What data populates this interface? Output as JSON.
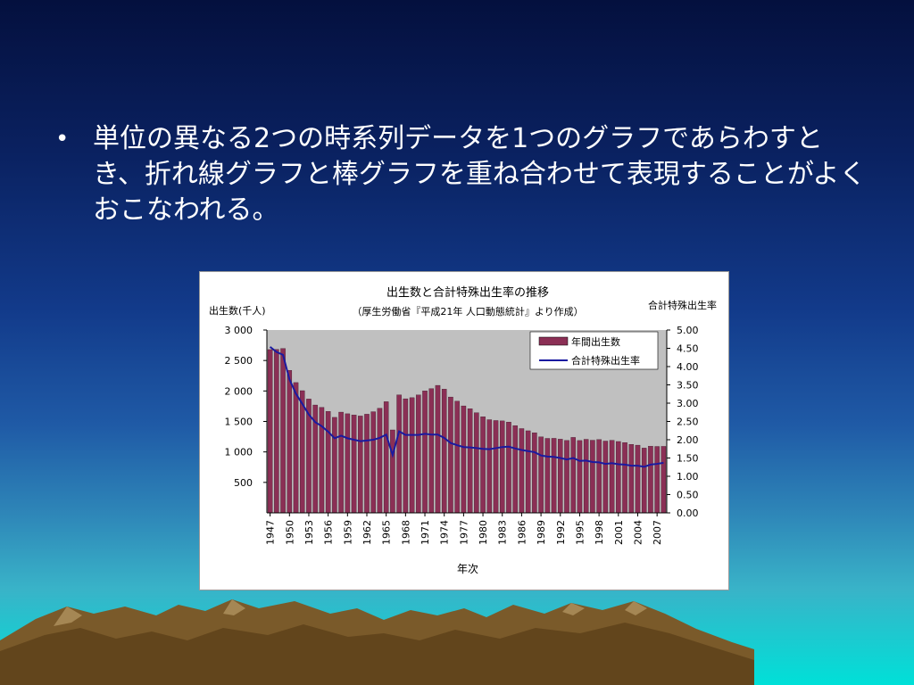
{
  "slide": {
    "bullet_symbol": "•",
    "text": "単位の異なる2つの時系列データを1つのグラフであらわすとき、折れ線グラフと棒グラフを重ね合わせて表現することがよくおこなわれる。"
  },
  "colors": {
    "bar": "#8b2f55",
    "line": "#1a1aa0",
    "plot_bg": "#c0c0c0"
  },
  "chart_data": {
    "type": "bar",
    "title": "出生数と合計特殊出生率の推移",
    "subtitle": "（厚生労働省『平成21年 人口動態統計』より作成）",
    "xlabel": "年次",
    "ylabel_left": "出生数(千人)",
    "ylabel_right": "合計特殊出生率",
    "ylim_left": [
      0,
      3000
    ],
    "ylim_right": [
      0,
      5
    ],
    "yticks_left": [
      "500",
      "1 000",
      "1 500",
      "2 000",
      "2 500",
      "3 000"
    ],
    "yticks_right": [
      "0.00",
      "0.50",
      "1.00",
      "1.50",
      "2.00",
      "2.50",
      "3.00",
      "3.50",
      "4.00",
      "4.50",
      "5.00"
    ],
    "legend_position": "top-right",
    "x": [
      1947,
      1948,
      1949,
      1950,
      1951,
      1952,
      1953,
      1954,
      1955,
      1956,
      1957,
      1958,
      1959,
      1960,
      1961,
      1962,
      1963,
      1964,
      1965,
      1966,
      1967,
      1968,
      1969,
      1970,
      1971,
      1972,
      1973,
      1974,
      1975,
      1976,
      1977,
      1978,
      1979,
      1980,
      1981,
      1982,
      1983,
      1984,
      1985,
      1986,
      1987,
      1988,
      1989,
      1990,
      1991,
      1992,
      1993,
      1994,
      1995,
      1996,
      1997,
      1998,
      1999,
      2000,
      2001,
      2002,
      2003,
      2004,
      2005,
      2006,
      2007,
      2008
    ],
    "x_tick_labels": [
      "1947",
      "1950",
      "1953",
      "1956",
      "1959",
      "1962",
      "1965",
      "1968",
      "1971",
      "1974",
      "1977",
      "1980",
      "1983",
      "1986",
      "1989",
      "1992",
      "1995",
      "1998",
      "2001",
      "2004",
      "2007"
    ],
    "series": [
      {
        "name": "年間出生数",
        "kind": "bar",
        "axis": "left",
        "values": [
          2679,
          2682,
          2697,
          2338,
          2138,
          2005,
          1868,
          1770,
          1731,
          1665,
          1567,
          1653,
          1626,
          1606,
          1589,
          1619,
          1660,
          1717,
          1824,
          1361,
          1936,
          1872,
          1890,
          1934,
          2001,
          2039,
          2092,
          2030,
          1901,
          1833,
          1755,
          1709,
          1643,
          1577,
          1529,
          1515,
          1509,
          1490,
          1432,
          1383,
          1347,
          1314,
          1247,
          1222,
          1223,
          1209,
          1188,
          1238,
          1187,
          1207,
          1192,
          1203,
          1178,
          1191,
          1171,
          1154,
          1124,
          1111,
          1063,
          1093,
          1090,
          1091
        ]
      },
      {
        "name": "合計特殊出生率",
        "kind": "line",
        "axis": "right",
        "values": [
          4.54,
          4.4,
          4.32,
          3.65,
          3.26,
          2.98,
          2.69,
          2.48,
          2.37,
          2.22,
          2.04,
          2.11,
          2.04,
          2.0,
          1.96,
          1.98,
          2.0,
          2.05,
          2.14,
          1.58,
          2.23,
          2.13,
          2.13,
          2.13,
          2.16,
          2.14,
          2.14,
          2.05,
          1.91,
          1.85,
          1.8,
          1.79,
          1.77,
          1.75,
          1.74,
          1.77,
          1.8,
          1.81,
          1.76,
          1.72,
          1.69,
          1.66,
          1.57,
          1.54,
          1.53,
          1.5,
          1.46,
          1.5,
          1.42,
          1.43,
          1.39,
          1.38,
          1.34,
          1.36,
          1.33,
          1.32,
          1.29,
          1.29,
          1.26,
          1.32,
          1.34,
          1.37
        ]
      }
    ]
  }
}
